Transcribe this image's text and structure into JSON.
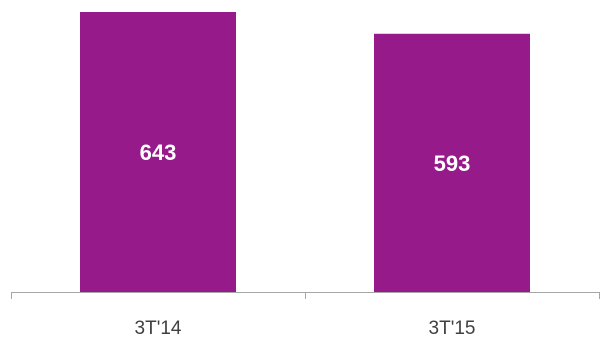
{
  "chart_data": {
    "type": "bar",
    "categories": [
      "3T'14",
      "3T'15"
    ],
    "values": [
      643,
      593
    ],
    "value_labels": [
      "643",
      "593"
    ],
    "ylim": [
      0,
      643
    ],
    "title": "",
    "xlabel": "",
    "ylabel": "",
    "grid": false,
    "legend": "none",
    "colors": {
      "bar": "#961a8a",
      "bar_label": "#ffffff",
      "axis": "#a6a6a6",
      "tick_label": "#404040"
    }
  }
}
